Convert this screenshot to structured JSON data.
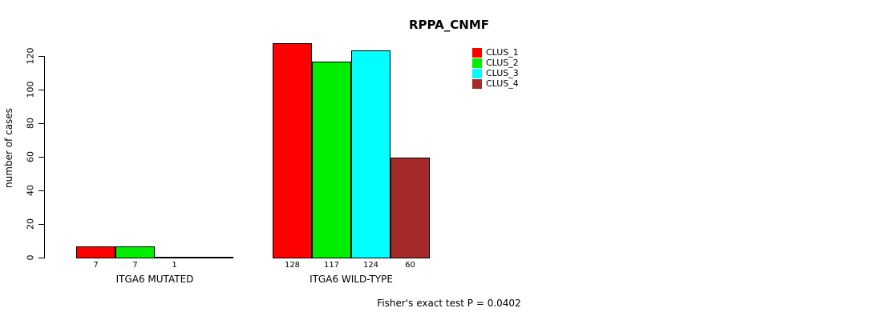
{
  "chart_data": {
    "type": "bar",
    "title": "RPPA_CNMF",
    "ylabel": "number of cases",
    "xlabel": "",
    "ylim": [
      0,
      120
    ],
    "yticks": [
      0,
      20,
      40,
      60,
      80,
      100,
      120
    ],
    "categories": [
      "ITGA6 MUTATED",
      "ITGA6 WILD-TYPE"
    ],
    "series": [
      {
        "name": "CLUS_1",
        "color": "#FF0000",
        "values": [
          7,
          128
        ]
      },
      {
        "name": "CLUS_2",
        "color": "#00EE00",
        "values": [
          7,
          117
        ]
      },
      {
        "name": "CLUS_3",
        "color": "#00FFFF",
        "values": [
          1,
          124
        ]
      },
      {
        "name": "CLUS_4",
        "color": "#A52A2A",
        "values": [
          0,
          60
        ]
      }
    ],
    "legend_position": "top-right",
    "grid": false,
    "bar_value_labels": true,
    "footnote": "Fisher's exact test P = 0.0402"
  }
}
